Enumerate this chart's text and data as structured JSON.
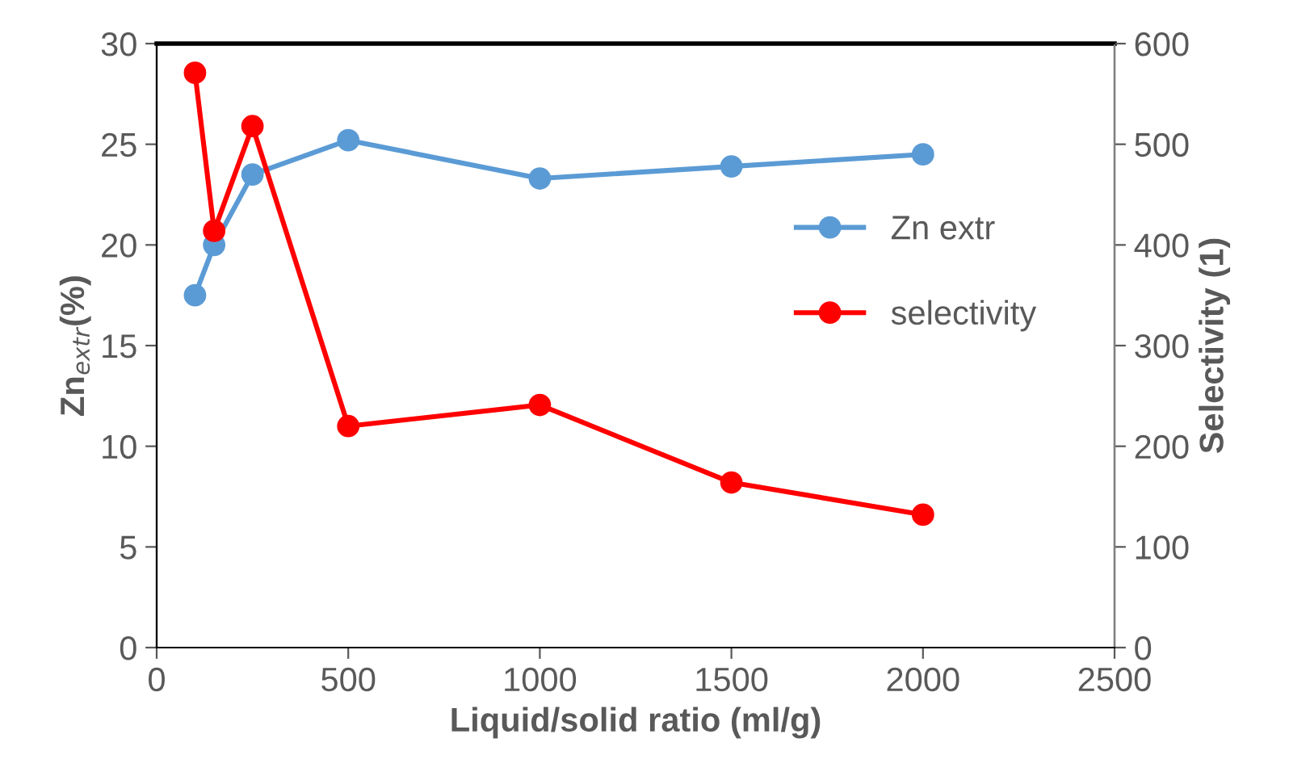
{
  "chart_data": {
    "type": "line",
    "xlabel": "Liquid/solid ratio (ml/g)",
    "ylabel": "Zn$_{extr}$(%)",
    "y2label": "Selectivity (1)",
    "x": [
      100,
      150,
      250,
      500,
      1000,
      1500,
      2000
    ],
    "series": [
      {
        "name": "Zn extr",
        "color": "#5b9bd5",
        "values": [
          17.5,
          20.0,
          23.5,
          25.2,
          23.3,
          23.9,
          24.5
        ]
      },
      {
        "name": "selectivity",
        "color": "#ff0000",
        "axis": "y2",
        "values": [
          571,
          414,
          518,
          220,
          241,
          164,
          132
        ]
      }
    ],
    "xlim": [
      0,
      2500
    ],
    "xticks": [
      0,
      500,
      1000,
      1500,
      2000,
      2500
    ],
    "ylim": [
      0,
      30
    ],
    "yticks": [
      0,
      5,
      10,
      15,
      20,
      25,
      30
    ],
    "y2lim": [
      0,
      600
    ],
    "y2ticks": [
      0,
      100,
      200,
      300,
      400,
      500,
      600
    ],
    "grid": false,
    "legend": "right",
    "marker": "circle",
    "line_style": "solid"
  }
}
